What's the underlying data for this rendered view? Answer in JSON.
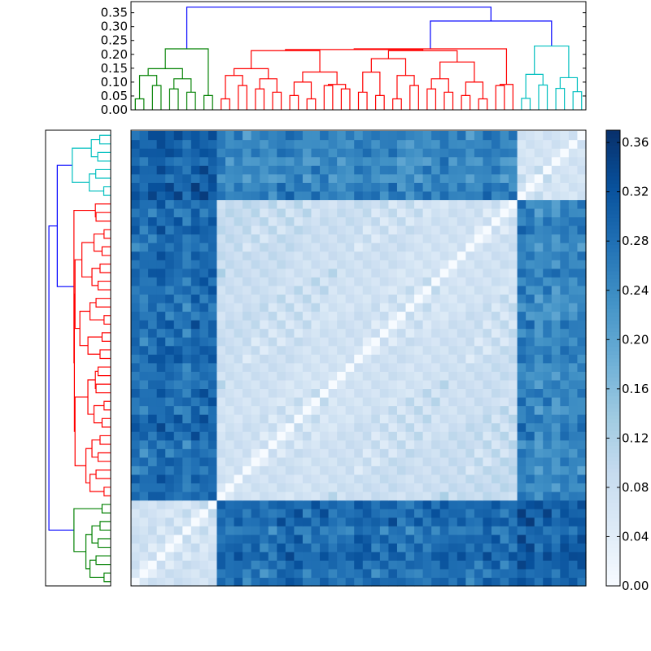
{
  "chart_data": {
    "type": "heatmap",
    "title": "",
    "description_of_panels": [
      "top dendrogram",
      "left dendrogram",
      "clustered distance matrix",
      "colorbar"
    ],
    "n_leaves": 53,
    "colormap": "Blues",
    "colorbar": {
      "range": [
        0.0,
        0.37
      ],
      "tick_labels": [
        "0.00",
        "0.04",
        "0.08",
        "0.12",
        "0.16",
        "0.20",
        "0.24",
        "0.28",
        "0.32",
        "0.36"
      ],
      "tick_values": [
        0.0,
        0.04,
        0.08,
        0.12,
        0.16,
        0.2,
        0.24,
        0.28,
        0.32,
        0.36
      ]
    },
    "dendrogram_axis": {
      "range": [
        0.0,
        0.39
      ],
      "tick_labels": [
        "0.00",
        "0.05",
        "0.10",
        "0.15",
        "0.20",
        "0.25",
        "0.30",
        "0.35"
      ],
      "tick_values": [
        0.0,
        0.05,
        0.1,
        0.15,
        0.2,
        0.25,
        0.3,
        0.35
      ]
    },
    "clusters": [
      {
        "color": "#008000",
        "start": 0,
        "size": 10,
        "merge_height": 0.22
      },
      {
        "color": "#ff0000",
        "start": 10,
        "size": 35,
        "merge_height": 0.22
      },
      {
        "color": "#00bfbf",
        "start": 45,
        "size": 8,
        "merge_height": 0.23
      }
    ],
    "top_links": [
      {
        "height": 0.32,
        "joins": [
          "red",
          "cyan"
        ],
        "color": "#0000ff"
      },
      {
        "height": 0.37,
        "joins": [
          "green",
          "red+cyan"
        ],
        "color": "#0000ff"
      }
    ],
    "within_cluster_distance": [
      0.03,
      0.13
    ],
    "between_cluster_distance": [
      0.2,
      0.37
    ]
  }
}
